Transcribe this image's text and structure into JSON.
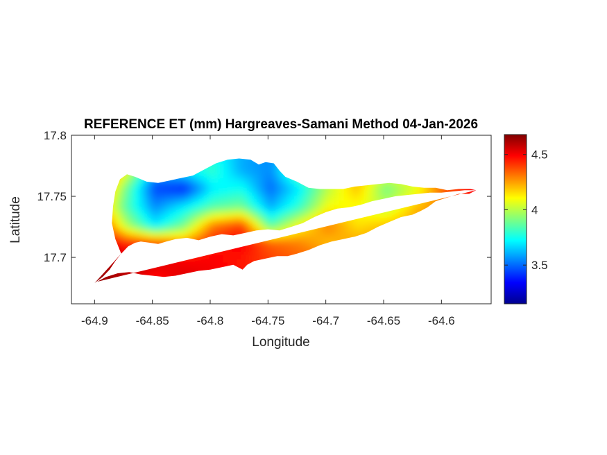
{
  "chart_data": {
    "type": "heatmap",
    "title": "REFERENCE ET (mm) Hargreaves-Samani Method  04-Jan-2026",
    "xlabel": "Longitude",
    "ylabel": "Latitude",
    "xlim": [
      -64.92,
      -64.557
    ],
    "ylim": [
      17.662,
      17.8
    ],
    "xticks": [
      -64.9,
      -64.85,
      -64.8,
      -64.75,
      -64.7,
      -64.65,
      -64.6
    ],
    "xtick_labels": [
      "-64.9",
      "-64.85",
      "-64.8",
      "-64.75",
      "-64.7",
      "-64.65",
      "-64.6"
    ],
    "yticks": [
      17.7,
      17.75,
      17.8
    ],
    "ytick_labels": [
      "17.7",
      "17.75",
      "17.8"
    ],
    "colorbar": {
      "colormap": "jet",
      "range": [
        3.15,
        4.68
      ],
      "ticks": [
        3.5,
        4,
        4.5
      ],
      "tick_labels": [
        "3.5",
        "4",
        "4.5"
      ]
    },
    "grid": false,
    "island_outline": [
      [
        -64.9,
        17.679
      ],
      [
        -64.893,
        17.684
      ],
      [
        -64.887,
        17.69
      ],
      [
        -64.882,
        17.697
      ],
      [
        -64.877,
        17.703
      ],
      [
        -64.871,
        17.709
      ],
      [
        -64.865,
        17.712
      ],
      [
        -64.86,
        17.713
      ],
      [
        -64.852,
        17.712
      ],
      [
        -64.845,
        17.711
      ],
      [
        -64.838,
        17.713
      ],
      [
        -64.83,
        17.715
      ],
      [
        -64.82,
        17.716
      ],
      [
        -64.81,
        17.714
      ],
      [
        -64.8,
        17.717
      ],
      [
        -64.79,
        17.719
      ],
      [
        -64.78,
        17.718
      ],
      [
        -64.77,
        17.72
      ],
      [
        -64.76,
        17.722
      ],
      [
        -64.75,
        17.723
      ],
      [
        -64.74,
        17.722
      ],
      [
        -64.73,
        17.725
      ],
      [
        -64.72,
        17.728
      ],
      [
        -64.71,
        17.733
      ],
      [
        -64.7,
        17.737
      ],
      [
        -64.69,
        17.74
      ],
      [
        -64.68,
        17.741
      ],
      [
        -64.67,
        17.743
      ],
      [
        -64.66,
        17.746
      ],
      [
        -64.65,
        17.748
      ],
      [
        -64.64,
        17.75
      ],
      [
        -64.63,
        17.751
      ],
      [
        -64.62,
        17.752
      ],
      [
        -64.61,
        17.753
      ],
      [
        -64.6,
        17.753
      ],
      [
        -64.59,
        17.754
      ],
      [
        -64.58,
        17.755
      ],
      [
        -64.57,
        17.755
      ],
      [
        -64.576,
        17.752
      ],
      [
        -64.585,
        17.752
      ],
      [
        -64.595,
        17.749
      ],
      [
        -64.605,
        17.746
      ],
      [
        -64.612,
        17.741
      ],
      [
        -64.618,
        17.738
      ],
      [
        -64.625,
        17.735
      ],
      [
        -64.635,
        17.733
      ],
      [
        -64.645,
        17.729
      ],
      [
        -64.655,
        17.725
      ],
      [
        -64.665,
        17.72
      ],
      [
        -64.675,
        17.717
      ],
      [
        -64.685,
        17.715
      ],
      [
        -64.695,
        17.713
      ],
      [
        -64.705,
        17.71
      ],
      [
        -64.715,
        17.706
      ],
      [
        -64.725,
        17.703
      ],
      [
        -64.733,
        17.701
      ],
      [
        -64.742,
        17.701
      ],
      [
        -64.752,
        17.699
      ],
      [
        -64.762,
        17.697
      ],
      [
        -64.768,
        17.694
      ],
      [
        -64.772,
        17.69
      ],
      [
        -64.78,
        17.694
      ],
      [
        -64.79,
        17.692
      ],
      [
        -64.8,
        17.69
      ],
      [
        -64.81,
        17.689
      ],
      [
        -64.82,
        17.687
      ],
      [
        -64.83,
        17.685
      ],
      [
        -64.84,
        17.684
      ],
      [
        -64.85,
        17.685
      ],
      [
        -64.86,
        17.686
      ],
      [
        -64.87,
        17.688
      ],
      [
        -64.88,
        17.687
      ],
      [
        -64.89,
        17.684
      ],
      [
        -64.898,
        17.68
      ]
    ],
    "island_north_outline": [
      [
        -64.877,
        17.703
      ],
      [
        -64.882,
        17.715
      ],
      [
        -64.885,
        17.728
      ],
      [
        -64.884,
        17.742
      ],
      [
        -64.882,
        17.754
      ],
      [
        -64.878,
        17.764
      ],
      [
        -64.872,
        17.768
      ],
      [
        -64.865,
        17.766
      ],
      [
        -64.855,
        17.762
      ],
      [
        -64.845,
        17.761
      ],
      [
        -64.835,
        17.763
      ],
      [
        -64.825,
        17.765
      ],
      [
        -64.815,
        17.767
      ],
      [
        -64.805,
        17.772
      ],
      [
        -64.795,
        17.777
      ],
      [
        -64.785,
        17.78
      ],
      [
        -64.775,
        17.781
      ],
      [
        -64.765,
        17.78
      ],
      [
        -64.758,
        17.776
      ],
      [
        -64.752,
        17.778
      ],
      [
        -64.745,
        17.777
      ],
      [
        -64.74,
        17.771
      ],
      [
        -64.735,
        17.766
      ],
      [
        -64.725,
        17.762
      ],
      [
        -64.715,
        17.757
      ],
      [
        -64.705,
        17.756
      ],
      [
        -64.695,
        17.756
      ],
      [
        -64.685,
        17.756
      ],
      [
        -64.675,
        17.758
      ],
      [
        -64.665,
        17.759
      ],
      [
        -64.655,
        17.76
      ],
      [
        -64.645,
        17.761
      ],
      [
        -64.635,
        17.76
      ],
      [
        -64.625,
        17.758
      ],
      [
        -64.615,
        17.757
      ],
      [
        -64.605,
        17.757
      ],
      [
        -64.595,
        17.755
      ],
      [
        -64.585,
        17.756
      ],
      [
        -64.575,
        17.756
      ],
      [
        -64.57,
        17.755
      ]
    ],
    "value_field": {
      "description_values_mm": "reference ET, mm",
      "x": [
        -64.9,
        -64.875,
        -64.85,
        -64.825,
        -64.8,
        -64.775,
        -64.75,
        -64.725,
        -64.7,
        -64.675,
        -64.65,
        -64.625,
        -64.6,
        -64.575
      ],
      "y": [
        17.68,
        17.695,
        17.71,
        17.725,
        17.74,
        17.755,
        17.77,
        17.785
      ],
      "values": [
        [
          4.65,
          4.6,
          4.45,
          4.55,
          4.5,
          4.5,
          4.4,
          4.4,
          4.4,
          4.3,
          4.3,
          4.3,
          4.3,
          4.4
        ],
        [
          4.62,
          4.58,
          4.55,
          4.5,
          4.5,
          4.45,
          4.4,
          4.35,
          4.35,
          4.3,
          4.3,
          4.3,
          4.35,
          4.4
        ],
        [
          4.6,
          4.45,
          4.4,
          4.3,
          4.45,
          4.5,
          4.35,
          4.3,
          4.2,
          4.25,
          4.25,
          4.3,
          4.35,
          4.4
        ],
        [
          4.5,
          4.0,
          3.7,
          3.9,
          4.3,
          4.4,
          3.85,
          4.1,
          4.3,
          4.15,
          4.2,
          4.25,
          4.35,
          4.4
        ],
        [
          4.3,
          3.85,
          3.55,
          3.7,
          3.85,
          3.9,
          3.6,
          3.8,
          4.1,
          4.1,
          4.0,
          4.2,
          4.3,
          4.45
        ],
        [
          4.4,
          3.9,
          3.45,
          3.4,
          3.7,
          3.75,
          3.5,
          3.7,
          4.0,
          4.2,
          3.9,
          4.05,
          4.35,
          4.5
        ],
        [
          4.55,
          4.1,
          3.6,
          3.7,
          3.8,
          3.6,
          3.55,
          3.9,
          4.1,
          4.2,
          4.1,
          4.2,
          4.3,
          4.4
        ],
        [
          4.5,
          4.2,
          3.8,
          3.8,
          3.75,
          3.6,
          3.55,
          3.7,
          4.0,
          4.1,
          4.1,
          4.2,
          4.3,
          4.4
        ]
      ]
    }
  }
}
